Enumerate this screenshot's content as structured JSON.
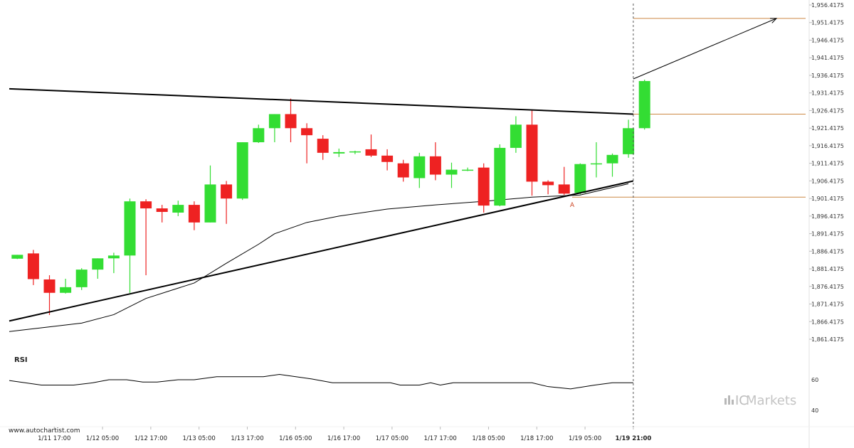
{
  "chart_data": {
    "type": "candlestick",
    "y_axis": {
      "ticks": [
        1956.4175,
        1951.4175,
        1946.4175,
        1941.4175,
        1936.4175,
        1931.4175,
        1926.4175,
        1921.4175,
        1916.4175,
        1911.4175,
        1906.4175,
        1901.4175,
        1896.4175,
        1891.4175,
        1886.4175,
        1881.4175,
        1876.4175,
        1871.4175,
        1866.4175,
        1861.4175
      ],
      "tick_labels": [
        "1,956.4175",
        "1,951.4175",
        "1,946.4175",
        "1,941.4175",
        "1,936.4175",
        "1,931.4175",
        "1,926.4175",
        "1,921.4175",
        "1,916.4175",
        "1,911.4175",
        "1,906.4175",
        "1,901.4175",
        "1,896.4175",
        "1,891.4175",
        "1,886.4175",
        "1,881.4175",
        "1,876.4175",
        "1,871.4175",
        "1,866.4175",
        "1,861.4175"
      ],
      "ylim": [
        1859.0,
        1958.0
      ]
    },
    "x_axis": {
      "tick_labels": [
        "1/11 17:00",
        "1/12 05:00",
        "1/12 17:00",
        "1/13 05:00",
        "1/13 17:00",
        "1/16 05:00",
        "1/16 17:00",
        "1/17 05:00",
        "1/17 17:00",
        "1/18 05:00",
        "1/18 17:00",
        "1/19 05:00",
        "1/19 21:00"
      ],
      "tick_index": [
        2.3,
        5.3,
        8.3,
        11.3,
        14.3,
        17.3,
        20.3,
        23.3,
        26.3,
        29.3,
        32.3,
        35.3,
        38.3
      ],
      "index_range": [
        -0.5,
        39
      ]
    },
    "candles": [
      {
        "o": 1884.3,
        "h": 1885.4,
        "l": 1884.2,
        "c": 1885.4
      },
      {
        "o": 1885.8,
        "h": 1886.8,
        "l": 1876.8,
        "c": 1878.5
      },
      {
        "o": 1878.4,
        "h": 1879.6,
        "l": 1868.3,
        "c": 1874.6
      },
      {
        "o": 1874.6,
        "h": 1878.6,
        "l": 1874.4,
        "c": 1876.2
      },
      {
        "o": 1876.2,
        "h": 1881.6,
        "l": 1875.4,
        "c": 1881.2
      },
      {
        "o": 1881.2,
        "h": 1884.4,
        "l": 1878.6,
        "c": 1884.4
      },
      {
        "o": 1884.4,
        "h": 1886.0,
        "l": 1880.2,
        "c": 1885.2
      },
      {
        "o": 1885.2,
        "h": 1901.4,
        "l": 1874.6,
        "c": 1900.6
      },
      {
        "o": 1900.6,
        "h": 1901.2,
        "l": 1879.6,
        "c": 1898.6
      },
      {
        "o": 1898.6,
        "h": 1899.6,
        "l": 1894.6,
        "c": 1897.6
      },
      {
        "o": 1897.4,
        "h": 1900.8,
        "l": 1896.4,
        "c": 1899.6
      },
      {
        "o": 1899.6,
        "h": 1900.6,
        "l": 1892.4,
        "c": 1894.6
      },
      {
        "o": 1894.6,
        "h": 1910.8,
        "l": 1894.6,
        "c": 1905.4
      },
      {
        "o": 1905.4,
        "h": 1906.4,
        "l": 1894.2,
        "c": 1901.4
      },
      {
        "o": 1901.4,
        "h": 1917.4,
        "l": 1901.0,
        "c": 1917.4
      },
      {
        "o": 1917.4,
        "h": 1922.4,
        "l": 1917.2,
        "c": 1921.4
      },
      {
        "o": 1921.4,
        "h": 1925.4,
        "l": 1917.4,
        "c": 1925.4
      },
      {
        "o": 1925.4,
        "h": 1929.8,
        "l": 1917.4,
        "c": 1921.4
      },
      {
        "o": 1921.4,
        "h": 1922.8,
        "l": 1911.4,
        "c": 1919.4
      },
      {
        "o": 1918.4,
        "h": 1919.4,
        "l": 1912.4,
        "c": 1914.4
      },
      {
        "o": 1914.2,
        "h": 1915.6,
        "l": 1913.2,
        "c": 1914.6
      },
      {
        "o": 1914.6,
        "h": 1915.0,
        "l": 1914.0,
        "c": 1914.8
      },
      {
        "o": 1915.4,
        "h": 1919.6,
        "l": 1913.2,
        "c": 1913.6
      },
      {
        "o": 1913.6,
        "h": 1915.4,
        "l": 1909.4,
        "c": 1911.8
      },
      {
        "o": 1911.4,
        "h": 1912.4,
        "l": 1906.2,
        "c": 1907.4
      },
      {
        "o": 1907.2,
        "h": 1914.4,
        "l": 1904.4,
        "c": 1913.4
      },
      {
        "o": 1913.4,
        "h": 1917.4,
        "l": 1906.6,
        "c": 1908.2
      },
      {
        "o": 1908.2,
        "h": 1911.6,
        "l": 1904.4,
        "c": 1909.6
      },
      {
        "o": 1909.4,
        "h": 1910.2,
        "l": 1909.2,
        "c": 1909.6
      },
      {
        "o": 1910.2,
        "h": 1911.4,
        "l": 1897.4,
        "c": 1899.4
      },
      {
        "o": 1899.4,
        "h": 1916.8,
        "l": 1899.2,
        "c": 1915.8
      },
      {
        "o": 1915.8,
        "h": 1924.8,
        "l": 1914.4,
        "c": 1922.4
      },
      {
        "o": 1922.4,
        "h": 1926.4,
        "l": 1902.2,
        "c": 1906.2
      },
      {
        "o": 1906.2,
        "h": 1906.6,
        "l": 1902.6,
        "c": 1905.2
      },
      {
        "o": 1905.4,
        "h": 1910.4,
        "l": 1902.4,
        "c": 1902.8
      },
      {
        "o": 1903.0,
        "h": 1911.4,
        "l": 1902.6,
        "c": 1911.2
      },
      {
        "o": 1911.2,
        "h": 1917.4,
        "l": 1907.4,
        "c": 1911.4
      },
      {
        "o": 1911.4,
        "h": 1914.2,
        "l": 1907.6,
        "c": 1913.8
      },
      {
        "o": 1914.0,
        "h": 1923.8,
        "l": 1913.0,
        "c": 1921.4
      },
      {
        "o": 1921.4,
        "h": 1935.2,
        "l": 1921.0,
        "c": 1934.8
      }
    ],
    "moving_average": {
      "points": [
        [
          -0.5,
          1863.6
        ],
        [
          4,
          1866.0
        ],
        [
          6,
          1868.4
        ],
        [
          8,
          1873.0
        ],
        [
          11,
          1877.4
        ],
        [
          13,
          1883.0
        ],
        [
          15,
          1888.4
        ],
        [
          16,
          1891.4
        ],
        [
          18,
          1894.6
        ],
        [
          20,
          1896.4
        ],
        [
          23,
          1898.4
        ],
        [
          26,
          1899.6
        ],
        [
          29,
          1900.6
        ],
        [
          32,
          1901.8
        ],
        [
          35,
          1902.4
        ],
        [
          38,
          1905.6
        ]
      ]
    },
    "trendlines": [
      {
        "name": "resistance",
        "points": [
          [
            -0.5,
            1932.6
          ],
          [
            38.3,
            1925.4
          ]
        ]
      },
      {
        "name": "support",
        "points": [
          [
            -0.5,
            1866.6
          ],
          [
            38.3,
            1906.4
          ]
        ]
      },
      {
        "name": "projection-arrow",
        "points": [
          [
            38.3,
            1935.4
          ],
          [
            47.2,
            1952.6
          ]
        ]
      }
    ],
    "horizontal_levels": [
      {
        "value": 1952.6,
        "from_index": 38.3
      },
      {
        "value": 1925.4,
        "from_index": 38.3
      },
      {
        "value": 1901.8,
        "from_index": 34.5
      }
    ],
    "annotations": [
      {
        "text": "A",
        "x_index": 34.5,
        "y": 1899.8
      }
    ],
    "vertical_marker_index": 38.3,
    "rsi": {
      "label": "RSI",
      "ticks": [
        60,
        40
      ],
      "tick_labels": [
        "60",
        "40"
      ],
      "ylim": [
        37,
        66
      ],
      "points": [
        [
          -0.5,
          59.5
        ],
        [
          1.5,
          56.5
        ],
        [
          3.5,
          56.5
        ],
        [
          4.7,
          58
        ],
        [
          5.7,
          60
        ],
        [
          6.8,
          60
        ],
        [
          7.8,
          58.5
        ],
        [
          8.7,
          58.5
        ],
        [
          10,
          60
        ],
        [
          11,
          60
        ],
        [
          12.4,
          62
        ],
        [
          15.3,
          62
        ],
        [
          16.3,
          63.5
        ],
        [
          18.3,
          60.5
        ],
        [
          19.6,
          58
        ],
        [
          23.2,
          58
        ],
        [
          23.8,
          56.5
        ],
        [
          25,
          56.5
        ],
        [
          25.7,
          58
        ],
        [
          26.3,
          56.5
        ],
        [
          27.1,
          58
        ],
        [
          32,
          58
        ],
        [
          33,
          55.5
        ],
        [
          34.4,
          54
        ],
        [
          35.9,
          56.5
        ],
        [
          37,
          58
        ],
        [
          38.3,
          58
        ]
      ]
    },
    "colors": {
      "up": "#33dd33",
      "down": "#ee2222",
      "level": "#cc8844",
      "annotation": "#cc4422",
      "trendline": "#000000"
    }
  },
  "watermark": {
    "text": "www.autochartist.com"
  },
  "brand": {
    "prefix": "IC",
    "suffix": "Markets"
  }
}
